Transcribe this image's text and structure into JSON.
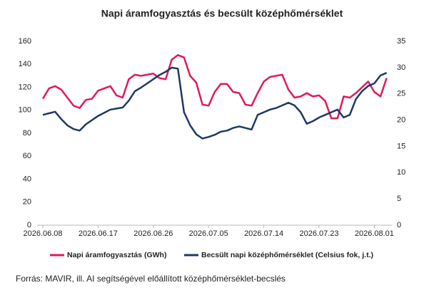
{
  "chart_data": {
    "type": "line",
    "title": "Napi áramfogyasztás és becsült középhőmérséklet",
    "x": [
      "2026.06.08",
      "2026.06.09",
      "2026.06.10",
      "2026.06.11",
      "2026.06.12",
      "2026.06.13",
      "2026.06.14",
      "2026.06.15",
      "2026.06.16",
      "2026.06.17",
      "2026.06.18",
      "2026.06.19",
      "2026.06.20",
      "2026.06.21",
      "2026.06.22",
      "2026.06.23",
      "2026.06.24",
      "2026.06.25",
      "2026.06.26",
      "2026.06.27",
      "2026.06.28",
      "2026.06.29",
      "2026.06.30",
      "2026.07.01",
      "2026.07.02",
      "2026.07.03",
      "2026.07.04",
      "2026.07.05",
      "2026.07.06",
      "2026.07.07",
      "2026.07.08",
      "2026.07.09",
      "2026.07.10",
      "2026.07.11",
      "2026.07.12",
      "2026.07.13",
      "2026.07.14",
      "2026.07.15",
      "2026.07.16",
      "2026.07.17",
      "2026.07.18",
      "2026.07.19",
      "2026.07.20",
      "2026.07.21",
      "2026.07.22",
      "2026.07.23",
      "2026.07.24",
      "2026.07.25",
      "2026.07.26",
      "2026.07.27",
      "2026.07.28",
      "2026.07.29",
      "2026.07.30",
      "2026.07.31",
      "2026.08.01",
      "2026.08.02",
      "2026.08.03"
    ],
    "xticks": [
      "2026.06.08",
      "2026.06.17",
      "2026.06.26",
      "2026.07.05",
      "2026.07.14",
      "2026.07.23",
      "2026.08.01"
    ],
    "series": [
      {
        "name": "Napi áramfogyasztás (GWh)",
        "color": "#e0195a",
        "values": [
          110,
          119,
          121,
          118,
          111,
          104,
          102,
          109,
          110,
          117,
          119,
          121,
          113,
          111,
          127,
          131,
          130,
          131,
          132,
          128,
          127,
          144,
          148,
          146,
          130,
          124,
          105,
          104,
          116,
          123,
          123,
          116,
          115,
          105,
          104,
          115,
          125,
          129,
          130,
          131,
          118,
          111,
          112,
          115,
          112,
          113,
          108,
          93,
          93,
          112,
          111,
          115,
          120,
          125,
          116,
          112,
          128
        ]
      },
      {
        "name": "Becsült napi középhőmérséklet (Celsius fok, j.t.)",
        "color": "#1f3864",
        "axis": "y2",
        "values": [
          21,
          21.3,
          21.6,
          20.2,
          19,
          18.3,
          18,
          19.2,
          20,
          20.8,
          21.4,
          22,
          22.2,
          22.4,
          23.7,
          25.5,
          26.2,
          27,
          27.8,
          28.6,
          29.2,
          30,
          29.8,
          21.5,
          19,
          17.3,
          16.5,
          16.8,
          17.2,
          17.8,
          18,
          18.5,
          18.8,
          18.5,
          18.2,
          21,
          21.5,
          22,
          22.3,
          22.8,
          23.3,
          22.8,
          21.5,
          19.3,
          19.8,
          20.5,
          21,
          21.5,
          22,
          20.5,
          21,
          24,
          25.5,
          26.5,
          27,
          28.5,
          29
        ]
      }
    ],
    "ylim": [
      0,
      160
    ],
    "yticks": [
      0,
      20,
      40,
      60,
      80,
      100,
      120,
      140,
      160
    ],
    "y2lim": [
      0,
      35
    ],
    "y2ticks": [
      0,
      5,
      10,
      15,
      20,
      25,
      30,
      35
    ],
    "source": "Forrás: MAVIR, ill. AI segítségével előállított középhőmérséklet-becslés"
  }
}
